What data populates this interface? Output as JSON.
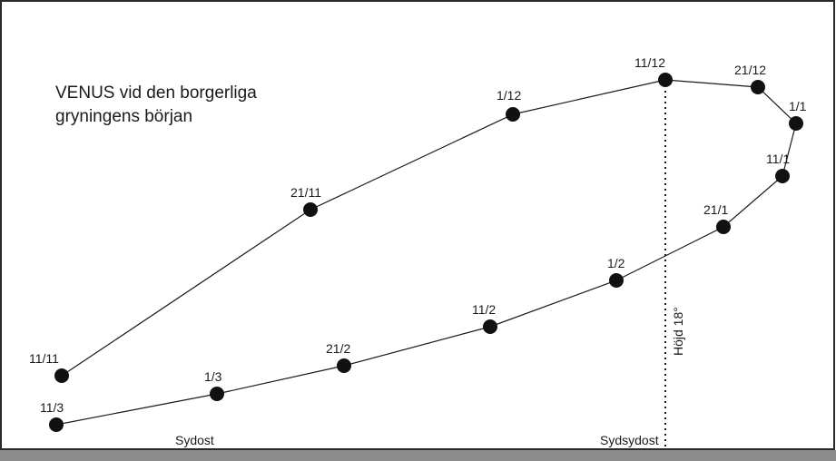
{
  "diagram": {
    "title_lines": [
      "VENUS vid den borgerliga",
      "gryningens början"
    ],
    "altitude_label": "Höjd 18°",
    "directions": [
      "Sydost",
      "Sydsydost"
    ],
    "path": [
      {
        "date": "11/11"
      },
      {
        "date": "21/11"
      },
      {
        "date": "1/12"
      },
      {
        "date": "11/12"
      },
      {
        "date": "21/12"
      },
      {
        "date": "1/1"
      },
      {
        "date": "11/1"
      },
      {
        "date": "21/1"
      },
      {
        "date": "1/2"
      },
      {
        "date": "11/2"
      },
      {
        "date": "21/2"
      },
      {
        "date": "1/3"
      },
      {
        "date": "11/3"
      }
    ]
  }
}
